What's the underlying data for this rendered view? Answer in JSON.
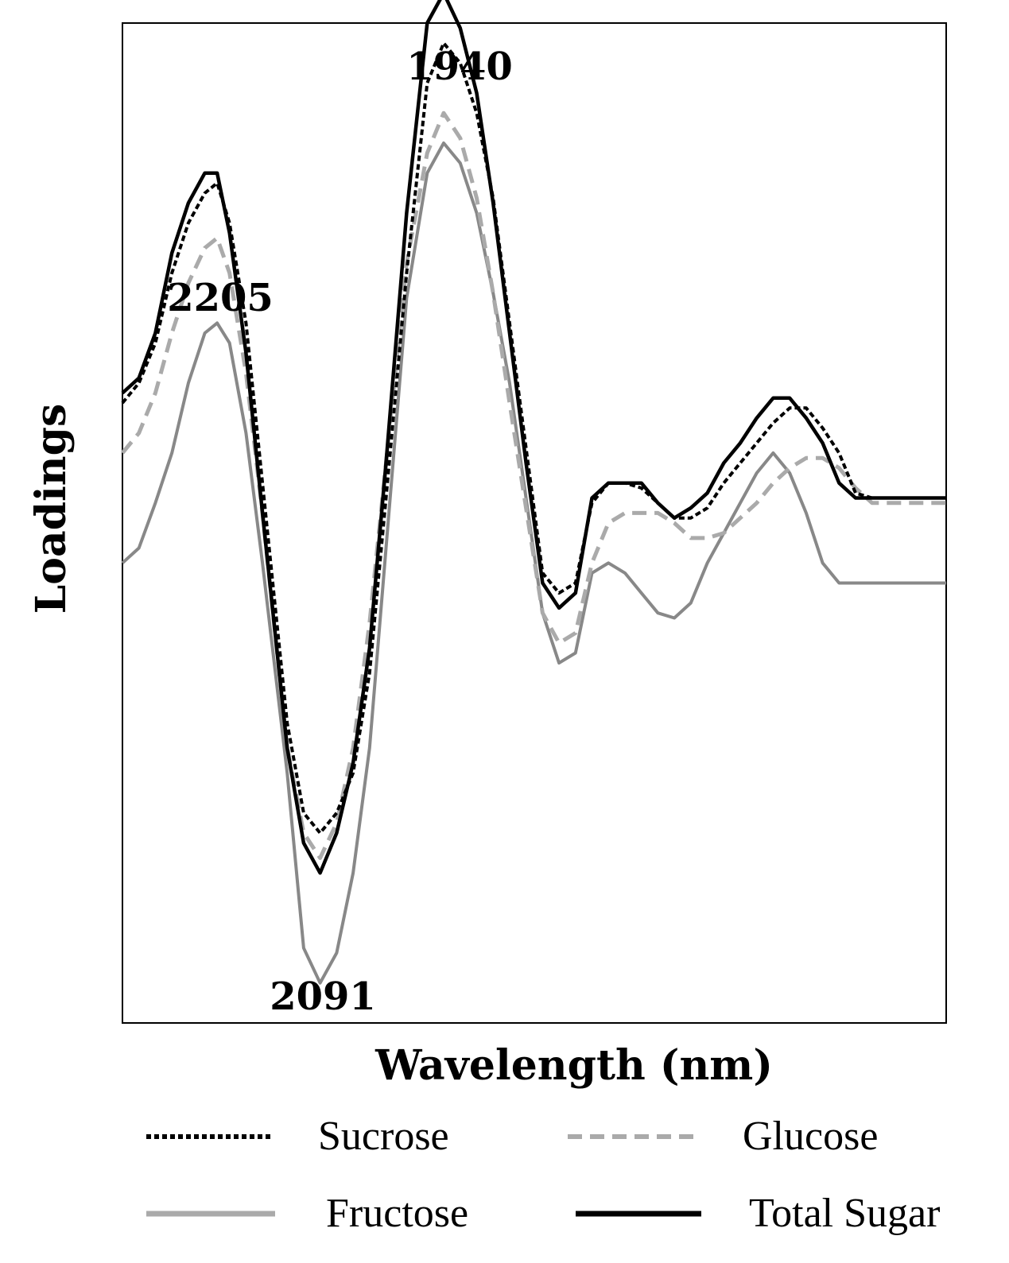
{
  "chart_data": {
    "type": "line",
    "title": "",
    "xlabel": "Wavelength (nm)",
    "ylabel": "Loadings",
    "xlim": [
      0,
      100
    ],
    "ylim": [
      -1.0,
      1.0
    ],
    "grid": false,
    "legend_position": "bottom",
    "x": [
      0,
      2,
      4,
      6,
      8,
      10,
      11.5,
      13,
      15,
      17,
      20,
      22,
      24,
      26,
      28,
      30,
      32,
      34.5,
      37,
      39,
      41,
      43,
      45,
      47,
      49,
      51,
      53,
      55,
      57,
      59,
      61,
      63,
      65,
      67,
      69,
      71,
      73,
      75,
      77,
      79,
      81,
      83,
      85,
      87,
      89,
      91,
      93,
      95,
      97,
      99,
      100
    ],
    "series": [
      {
        "name": "Sucrose",
        "color": "#000000",
        "style": "dotted",
        "values": [
          0.24,
          0.28,
          0.36,
          0.5,
          0.6,
          0.66,
          0.68,
          0.6,
          0.4,
          0.08,
          -0.4,
          -0.58,
          -0.62,
          -0.58,
          -0.5,
          -0.3,
          0.05,
          0.5,
          0.88,
          0.96,
          0.92,
          0.82,
          0.65,
          0.4,
          0.15,
          -0.1,
          -0.14,
          -0.12,
          0.04,
          0.08,
          0.08,
          0.07,
          0.04,
          0.01,
          0.01,
          0.03,
          0.08,
          0.12,
          0.16,
          0.2,
          0.23,
          0.23,
          0.19,
          0.14,
          0.06,
          0.05,
          0.05,
          0.05,
          0.05,
          0.05,
          0.05
        ]
      },
      {
        "name": "Glucose",
        "color": "#aaaaaa",
        "style": "dashed",
        "values": [
          0.14,
          0.18,
          0.26,
          0.38,
          0.48,
          0.55,
          0.57,
          0.5,
          0.3,
          0.02,
          -0.45,
          -0.62,
          -0.67,
          -0.6,
          -0.45,
          -0.2,
          0.12,
          0.52,
          0.74,
          0.82,
          0.77,
          0.65,
          0.46,
          0.24,
          0.03,
          -0.18,
          -0.24,
          -0.22,
          -0.08,
          0.0,
          0.02,
          0.02,
          0.02,
          0.0,
          -0.03,
          -0.03,
          -0.02,
          0.01,
          0.04,
          0.08,
          0.11,
          0.13,
          0.13,
          0.11,
          0.07,
          0.04,
          0.04,
          0.04,
          0.04,
          0.04,
          0.04
        ]
      },
      {
        "name": "Fructose",
        "color": "#888888",
        "style": "solid",
        "values": [
          -0.08,
          -0.05,
          0.04,
          0.14,
          0.28,
          0.38,
          0.4,
          0.36,
          0.18,
          -0.08,
          -0.5,
          -0.85,
          -0.92,
          -0.86,
          -0.7,
          -0.45,
          -0.05,
          0.45,
          0.7,
          0.76,
          0.72,
          0.62,
          0.46,
          0.28,
          0.05,
          -0.18,
          -0.28,
          -0.26,
          -0.1,
          -0.08,
          -0.1,
          -0.14,
          -0.18,
          -0.19,
          -0.16,
          -0.08,
          -0.02,
          0.04,
          0.1,
          0.14,
          0.1,
          0.02,
          -0.08,
          -0.12,
          -0.12,
          -0.12,
          -0.12,
          -0.12,
          -0.12,
          -0.12,
          -0.12
        ]
      },
      {
        "name": "Total Sugar",
        "color": "#000000",
        "style": "solid",
        "values": [
          0.26,
          0.29,
          0.38,
          0.54,
          0.64,
          0.7,
          0.7,
          0.58,
          0.34,
          0.02,
          -0.45,
          -0.64,
          -0.7,
          -0.62,
          -0.48,
          -0.25,
          0.12,
          0.62,
          1.0,
          1.06,
          0.99,
          0.86,
          0.64,
          0.38,
          0.12,
          -0.12,
          -0.17,
          -0.14,
          0.05,
          0.08,
          0.08,
          0.08,
          0.04,
          0.01,
          0.03,
          0.06,
          0.12,
          0.16,
          0.21,
          0.25,
          0.25,
          0.21,
          0.16,
          0.08,
          0.05,
          0.05,
          0.05,
          0.05,
          0.05,
          0.05,
          0.05
        ]
      }
    ],
    "annotations": [
      {
        "text": "2205",
        "x": 11.5,
        "y": 0.7
      },
      {
        "text": "1940",
        "x": 39,
        "y": 1.06
      },
      {
        "text": "2091",
        "x": 24,
        "y": -0.92
      }
    ]
  },
  "legend": [
    {
      "label": "Sucrose"
    },
    {
      "label": "Glucose"
    },
    {
      "label": "Fructose"
    },
    {
      "label": "Total Sugar"
    }
  ]
}
